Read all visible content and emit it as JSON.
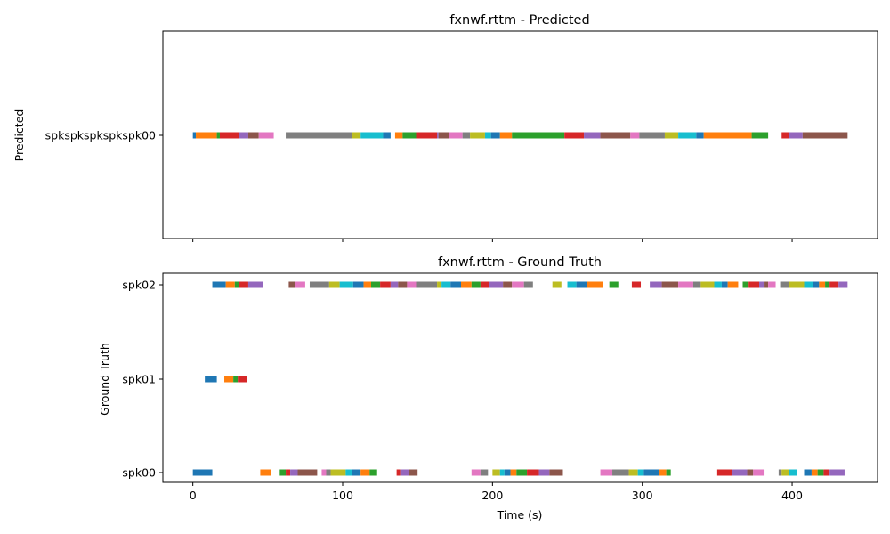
{
  "chart_data": [
    {
      "type": "timeline",
      "title": "fxnwf.rttm - Predicted",
      "ylabel": "Predicted",
      "xlim": [
        -20,
        457
      ],
      "x_ticks": [],
      "rows": [
        {
          "label": "spkspkspkspkspk00",
          "segments": [
            [
              0,
              2
            ],
            [
              2,
              16
            ],
            [
              16,
              18
            ],
            [
              18,
              31
            ],
            [
              31,
              37
            ],
            [
              37,
              44
            ],
            [
              44,
              54
            ],
            [
              62,
              106
            ],
            [
              106,
              112
            ],
            [
              112,
              127
            ],
            [
              127,
              132
            ],
            [
              135,
              140
            ],
            [
              140,
              149
            ],
            [
              149,
              163
            ],
            [
              163,
              164
            ],
            [
              164,
              171
            ],
            [
              171,
              180
            ],
            [
              180,
              185
            ],
            [
              185,
              195
            ],
            [
              195,
              199
            ],
            [
              199,
              205
            ],
            [
              205,
              213
            ],
            [
              213,
              248
            ],
            [
              248,
              261
            ],
            [
              261,
              272
            ],
            [
              272,
              292
            ],
            [
              292,
              298
            ],
            [
              298,
              315
            ],
            [
              315,
              324
            ],
            [
              324,
              336
            ],
            [
              336,
              341
            ],
            [
              341,
              373
            ],
            [
              373,
              384
            ],
            [
              393,
              398
            ],
            [
              398,
              407
            ],
            [
              407,
              437
            ]
          ]
        }
      ]
    },
    {
      "type": "timeline",
      "title": "fxnwf.rttm - Ground Truth",
      "xlabel": "Time (s)",
      "ylabel": "Ground Truth",
      "xlim": [
        -20,
        457
      ],
      "x_ticks": [
        "0",
        "100",
        "200",
        "300",
        "400"
      ],
      "rows": [
        {
          "label": "spk02",
          "segments": [
            [
              13,
              22
            ],
            [
              22,
              28
            ],
            [
              28,
              31
            ],
            [
              31,
              37
            ],
            [
              37,
              47
            ],
            [
              64,
              68
            ],
            [
              68,
              75
            ],
            [
              78,
              91
            ],
            [
              91,
              98
            ],
            [
              98,
              107
            ],
            [
              107,
              114
            ],
            [
              114,
              119
            ],
            [
              119,
              125
            ],
            [
              125,
              132
            ],
            [
              132,
              137
            ],
            [
              137,
              143
            ],
            [
              143,
              149
            ],
            [
              149,
              163
            ],
            [
              163,
              166
            ],
            [
              166,
              172
            ],
            [
              172,
              179
            ],
            [
              179,
              186
            ],
            [
              186,
              192
            ],
            [
              192,
              198
            ],
            [
              198,
              207
            ],
            [
              207,
              213
            ],
            [
              213,
              221
            ],
            [
              221,
              227
            ],
            [
              240,
              246
            ],
            [
              250,
              256
            ],
            [
              256,
              263
            ],
            [
              263,
              274
            ],
            [
              278,
              284
            ],
            [
              293,
              299
            ],
            [
              305,
              313
            ],
            [
              313,
              324
            ],
            [
              324,
              334
            ],
            [
              334,
              339
            ],
            [
              339,
              348
            ],
            [
              348,
              353
            ],
            [
              353,
              357
            ],
            [
              357,
              364
            ],
            [
              367,
              371
            ],
            [
              371,
              378
            ],
            [
              378,
              381
            ],
            [
              381,
              384
            ],
            [
              384,
              389
            ],
            [
              392,
              398
            ],
            [
              398,
              408
            ],
            [
              408,
              414
            ],
            [
              414,
              418
            ],
            [
              418,
              422
            ],
            [
              422,
              425
            ],
            [
              425,
              431
            ],
            [
              431,
              437
            ]
          ]
        },
        {
          "label": "spk01",
          "segments": [
            [
              8,
              16
            ],
            [
              21,
              27
            ],
            [
              27,
              30
            ],
            [
              30,
              36
            ]
          ]
        },
        {
          "label": "spk00",
          "segments": [
            [
              0,
              13
            ],
            [
              45,
              52
            ],
            [
              58,
              62
            ],
            [
              62,
              65
            ],
            [
              65,
              70
            ],
            [
              70,
              83
            ],
            [
              86,
              89
            ],
            [
              89,
              92
            ],
            [
              92,
              102
            ],
            [
              102,
              106
            ],
            [
              106,
              112
            ],
            [
              112,
              118
            ],
            [
              118,
              123
            ],
            [
              136,
              139
            ],
            [
              139,
              144
            ],
            [
              144,
              150
            ],
            [
              186,
              192
            ],
            [
              192,
              197
            ],
            [
              200,
              205
            ],
            [
              205,
              208
            ],
            [
              208,
              212
            ],
            [
              212,
              216
            ],
            [
              216,
              223
            ],
            [
              223,
              231
            ],
            [
              231,
              238
            ],
            [
              238,
              247
            ],
            [
              272,
              280
            ],
            [
              280,
              291
            ],
            [
              291,
              297
            ],
            [
              297,
              301
            ],
            [
              301,
              311
            ],
            [
              311,
              316
            ],
            [
              316,
              319
            ],
            [
              350,
              360
            ],
            [
              360,
              370
            ],
            [
              370,
              374
            ],
            [
              374,
              381
            ],
            [
              391,
              393
            ],
            [
              393,
              398
            ],
            [
              398,
              403
            ],
            [
              408,
              413
            ],
            [
              413,
              417
            ],
            [
              417,
              421
            ],
            [
              421,
              425
            ],
            [
              425,
              435
            ]
          ]
        }
      ]
    }
  ],
  "palette": [
    "#1f77b4",
    "#ff7f0e",
    "#2ca02c",
    "#d62728",
    "#9467bd",
    "#8c564b",
    "#e377c2",
    "#7f7f7f",
    "#bcbd22",
    "#17becf"
  ]
}
